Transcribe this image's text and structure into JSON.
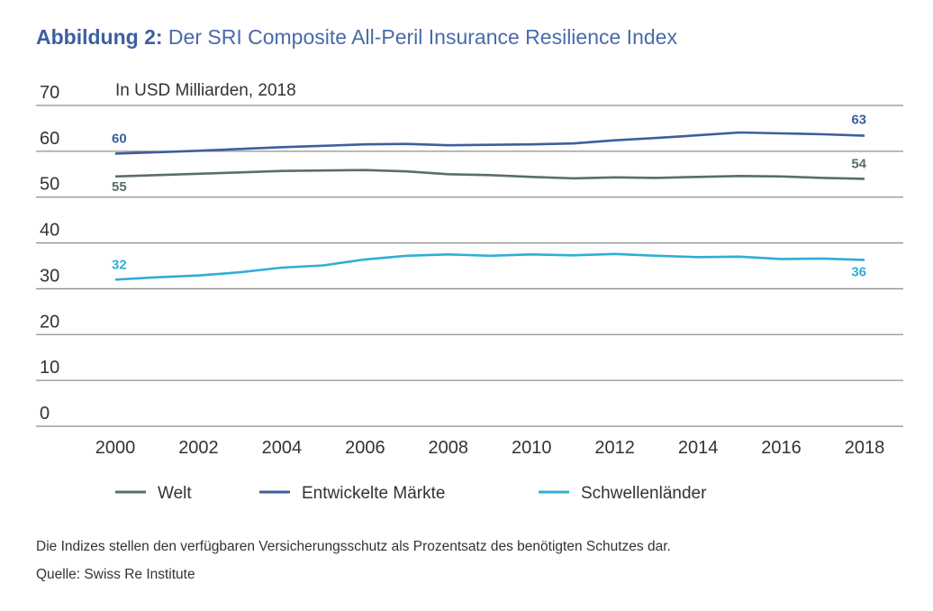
{
  "header": {
    "title_prefix": "Abbildung 2:",
    "title_text": "Der SRI Composite All-Peril Insurance Resilience Index"
  },
  "chart_data": {
    "type": "line",
    "unit_label": "In USD Milliarden, 2018",
    "x": [
      2000,
      2001,
      2002,
      2003,
      2004,
      2005,
      2006,
      2007,
      2008,
      2009,
      2010,
      2011,
      2012,
      2013,
      2014,
      2015,
      2016,
      2017,
      2018
    ],
    "x_ticks": [
      2000,
      2002,
      2004,
      2006,
      2008,
      2010,
      2012,
      2014,
      2016,
      2018
    ],
    "y_ticks": [
      0,
      10,
      20,
      30,
      40,
      50,
      60,
      70
    ],
    "ylim": [
      0,
      70
    ],
    "xlim": [
      2000,
      2018
    ],
    "grid": "horizontal",
    "legend_position": "bottom",
    "series": [
      {
        "name": "Welt",
        "color": "#5b6e69",
        "values": [
          54.5,
          54.8,
          55.1,
          55.4,
          55.7,
          55.8,
          55.9,
          55.6,
          55.0,
          54.8,
          54.4,
          54.1,
          54.3,
          54.2,
          54.4,
          54.6,
          54.5,
          54.2,
          54.0
        ],
        "start_label": "55",
        "end_label": "54"
      },
      {
        "name": "Entwickelte Märkte",
        "color": "#3d5f9e",
        "values": [
          59.5,
          59.8,
          60.1,
          60.5,
          60.9,
          61.2,
          61.5,
          61.6,
          61.3,
          61.4,
          61.5,
          61.7,
          62.4,
          62.9,
          63.5,
          64.1,
          63.9,
          63.7,
          63.4
        ],
        "start_label": "60",
        "end_label": "63"
      },
      {
        "name": "Schwellenländer",
        "color": "#30aed6",
        "values": [
          32.0,
          32.5,
          32.9,
          33.6,
          34.6,
          35.1,
          36.4,
          37.2,
          37.5,
          37.2,
          37.5,
          37.3,
          37.6,
          37.2,
          36.9,
          37.0,
          36.5,
          36.6,
          36.3
        ],
        "start_label": "32",
        "end_label": "36"
      }
    ]
  },
  "footer": {
    "note": "Die Indizes stellen den verfügbaren Versicherungsschutz als Prozentsatz des benötigten Schutzes dar.",
    "source": "Quelle: Swiss Re Institute"
  }
}
